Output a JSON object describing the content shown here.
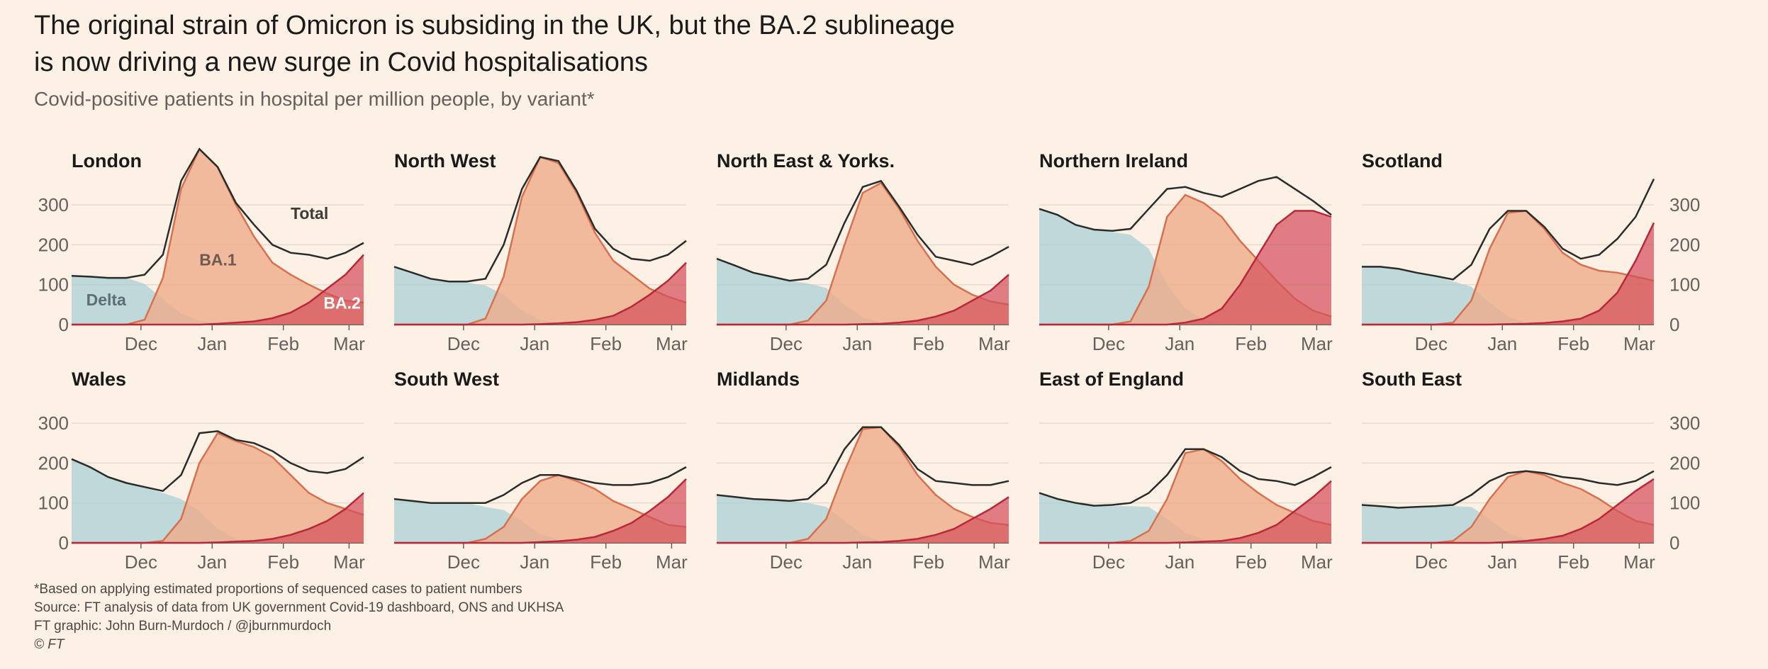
{
  "title_line1": "The original strain of Omicron is subsiding in the UK, but the BA.2 sublineage",
  "title_line2": "is now driving a new surge in Covid hospitalisations",
  "subtitle": "Covid-positive patients in hospital per million people, by variant*",
  "footer": {
    "note": "*Based on applying estimated proportions of sequenced cases to patient numbers",
    "source": "Source: FT analysis of data from UK government Covid-19 dashboard, ONS and UKHSA",
    "credit": "FT graphic: John Burn-Murdoch / @jburnmurdoch",
    "copyright": "© FT"
  },
  "colors": {
    "delta": "#a9cfd6",
    "ba1": "#eeaa88",
    "ba1_line": "#d6714f",
    "ba2": "#d2505b",
    "ba2_line": "#b8283a",
    "total": "#2b2b2b",
    "grid": "#e6d9ce",
    "axis": "#66605c"
  },
  "chart_data": {
    "type": "area",
    "stacking": "overlapping areas per variant with a total line",
    "x_unit": "week index (0 = mid-November 2021, 16 = mid-March 2022)",
    "x_range": [
      0,
      16
    ],
    "x_ticks": [
      {
        "x": 3.8,
        "label": "Dec"
      },
      {
        "x": 7.7,
        "label": "Jan"
      },
      {
        "x": 11.6,
        "label": "Feb"
      },
      {
        "x": 15.2,
        "label": "Mar"
      }
    ],
    "ylim": [
      0,
      450
    ],
    "y_ticks": [
      0,
      100,
      200,
      300
    ],
    "legend_labels": {
      "delta": "Delta",
      "ba1": "BA.1",
      "ba2": "BA.2",
      "total": "Total"
    },
    "x": [
      0,
      1,
      2,
      3,
      4,
      5,
      6,
      7,
      8,
      9,
      10,
      11,
      12,
      13,
      14,
      15,
      16
    ],
    "panels": [
      {
        "name": "London",
        "row": 0,
        "col": 0,
        "annotated": true,
        "delta": [
          122,
          120,
          117,
          117,
          102,
          64,
          28,
          10,
          4,
          0,
          0,
          0,
          0,
          0,
          0,
          0,
          0
        ],
        "ba1": [
          0,
          0,
          0,
          0,
          12,
          117,
          340,
          440,
          395,
          300,
          220,
          155,
          125,
          100,
          78,
          60,
          55
        ],
        "ba2": [
          0,
          0,
          0,
          0,
          0,
          0,
          0,
          0,
          2,
          5,
          8,
          16,
          30,
          55,
          90,
          125,
          175
        ],
        "total": [
          122,
          120,
          117,
          117,
          125,
          175,
          360,
          440,
          395,
          305,
          250,
          200,
          180,
          175,
          165,
          180,
          205
        ]
      },
      {
        "name": "North West",
        "row": 0,
        "col": 1,
        "delta": [
          145,
          130,
          115,
          108,
          105,
          98,
          75,
          35,
          12,
          3,
          0,
          0,
          0,
          0,
          0,
          0,
          0
        ],
        "ba1": [
          0,
          0,
          0,
          0,
          0,
          15,
          120,
          320,
          420,
          405,
          330,
          230,
          160,
          125,
          90,
          70,
          55
        ],
        "ba2": [
          0,
          0,
          0,
          0,
          0,
          0,
          0,
          0,
          1,
          3,
          6,
          12,
          22,
          45,
          75,
          110,
          155
        ],
        "total": [
          145,
          130,
          115,
          108,
          108,
          115,
          200,
          340,
          420,
          410,
          335,
          240,
          190,
          165,
          160,
          175,
          210
        ]
      },
      {
        "name": "North East & Yorks.",
        "row": 0,
        "col": 2,
        "delta": [
          165,
          148,
          130,
          120,
          110,
          103,
          92,
          50,
          18,
          5,
          0,
          0,
          0,
          0,
          0,
          0,
          0
        ],
        "ba1": [
          0,
          0,
          0,
          0,
          0,
          10,
          60,
          200,
          330,
          355,
          290,
          210,
          145,
          100,
          75,
          58,
          50
        ],
        "ba2": [
          0,
          0,
          0,
          0,
          0,
          0,
          0,
          0,
          1,
          2,
          5,
          10,
          20,
          35,
          60,
          85,
          125
        ],
        "total": [
          165,
          148,
          130,
          120,
          110,
          115,
          150,
          255,
          345,
          360,
          295,
          225,
          170,
          160,
          150,
          170,
          195
        ]
      },
      {
        "name": "Northern Ireland",
        "row": 0,
        "col": 3,
        "delta": [
          290,
          275,
          250,
          238,
          232,
          225,
          190,
          100,
          40,
          12,
          3,
          0,
          0,
          0,
          0,
          0,
          0
        ],
        "ba1": [
          0,
          0,
          0,
          0,
          0,
          8,
          95,
          270,
          325,
          305,
          270,
          210,
          160,
          110,
          65,
          35,
          20
        ],
        "ba2": [
          0,
          0,
          0,
          0,
          0,
          0,
          0,
          0,
          5,
          15,
          40,
          100,
          175,
          250,
          285,
          285,
          270
        ],
        "total": [
          290,
          275,
          250,
          238,
          235,
          240,
          290,
          340,
          345,
          330,
          320,
          340,
          360,
          370,
          340,
          310,
          275
        ]
      },
      {
        "name": "Scotland",
        "row": 0,
        "col": 4,
        "delta": [
          145,
          145,
          140,
          130,
          122,
          108,
          95,
          55,
          20,
          5,
          0,
          0,
          0,
          0,
          0,
          0,
          0
        ],
        "ba1": [
          0,
          0,
          0,
          0,
          0,
          5,
          60,
          190,
          280,
          285,
          240,
          180,
          150,
          135,
          130,
          120,
          110
        ],
        "ba2": [
          0,
          0,
          0,
          0,
          0,
          0,
          0,
          0,
          1,
          2,
          4,
          8,
          15,
          35,
          80,
          160,
          255
        ],
        "total": [
          145,
          145,
          140,
          130,
          122,
          113,
          150,
          240,
          285,
          285,
          245,
          190,
          165,
          175,
          215,
          270,
          365
        ]
      },
      {
        "name": "Wales",
        "row": 1,
        "col": 0,
        "delta": [
          210,
          190,
          165,
          150,
          140,
          125,
          110,
          80,
          35,
          10,
          3,
          0,
          0,
          0,
          0,
          0,
          0
        ],
        "ba1": [
          0,
          0,
          0,
          0,
          0,
          5,
          60,
          200,
          275,
          255,
          240,
          215,
          170,
          125,
          100,
          85,
          70
        ],
        "ba2": [
          0,
          0,
          0,
          0,
          0,
          0,
          0,
          0,
          1,
          3,
          5,
          10,
          20,
          35,
          55,
          85,
          125
        ],
        "total": [
          210,
          190,
          165,
          150,
          140,
          130,
          170,
          275,
          280,
          258,
          250,
          230,
          200,
          180,
          175,
          185,
          215
        ]
      },
      {
        "name": "South West",
        "row": 1,
        "col": 1,
        "delta": [
          110,
          105,
          100,
          100,
          100,
          90,
          82,
          55,
          22,
          8,
          0,
          0,
          0,
          0,
          0,
          0,
          0
        ],
        "ba1": [
          0,
          0,
          0,
          0,
          0,
          10,
          40,
          110,
          155,
          170,
          155,
          135,
          105,
          85,
          65,
          45,
          40
        ],
        "ba2": [
          0,
          0,
          0,
          0,
          0,
          0,
          0,
          0,
          2,
          4,
          8,
          15,
          30,
          50,
          80,
          115,
          160
        ],
        "total": [
          110,
          105,
          100,
          100,
          100,
          100,
          120,
          150,
          170,
          170,
          160,
          150,
          145,
          145,
          150,
          165,
          190
        ]
      },
      {
        "name": "Midlands",
        "row": 1,
        "col": 2,
        "delta": [
          120,
          115,
          110,
          108,
          105,
          100,
          90,
          55,
          20,
          5,
          0,
          0,
          0,
          0,
          0,
          0,
          0
        ],
        "ba1": [
          0,
          0,
          0,
          0,
          0,
          10,
          60,
          180,
          285,
          290,
          240,
          170,
          120,
          85,
          65,
          50,
          45
        ],
        "ba2": [
          0,
          0,
          0,
          0,
          0,
          0,
          0,
          0,
          1,
          2,
          5,
          10,
          20,
          35,
          60,
          85,
          115
        ],
        "total": [
          120,
          115,
          110,
          108,
          105,
          110,
          150,
          235,
          290,
          290,
          245,
          185,
          155,
          150,
          145,
          145,
          155
        ]
      },
      {
        "name": "East of England",
        "row": 1,
        "col": 3,
        "delta": [
          125,
          110,
          100,
          93,
          92,
          92,
          90,
          60,
          25,
          8,
          0,
          0,
          0,
          0,
          0,
          0,
          0
        ],
        "ba1": [
          0,
          0,
          0,
          0,
          0,
          5,
          30,
          110,
          225,
          235,
          205,
          160,
          125,
          95,
          75,
          55,
          45
        ],
        "ba2": [
          0,
          0,
          0,
          0,
          0,
          0,
          0,
          0,
          1,
          3,
          5,
          12,
          25,
          45,
          80,
          115,
          155
        ],
        "total": [
          125,
          110,
          100,
          93,
          95,
          100,
          125,
          170,
          235,
          235,
          215,
          180,
          160,
          155,
          145,
          165,
          190
        ]
      },
      {
        "name": "South East",
        "row": 1,
        "col": 4,
        "delta": [
          95,
          92,
          88,
          90,
          92,
          92,
          90,
          60,
          25,
          8,
          0,
          0,
          0,
          0,
          0,
          0,
          0
        ],
        "ba1": [
          0,
          0,
          0,
          0,
          0,
          5,
          40,
          110,
          165,
          180,
          170,
          150,
          135,
          110,
          80,
          55,
          45
        ],
        "ba2": [
          0,
          0,
          0,
          0,
          0,
          0,
          0,
          0,
          2,
          5,
          10,
          18,
          35,
          60,
          95,
          130,
          160
        ],
        "total": [
          95,
          92,
          88,
          90,
          92,
          95,
          120,
          155,
          175,
          180,
          175,
          165,
          160,
          150,
          145,
          155,
          180
        ]
      }
    ]
  }
}
